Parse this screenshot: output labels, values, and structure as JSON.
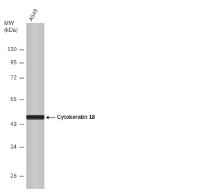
{
  "lane_label": "A549",
  "mw_label": {
    "line1": "MW",
    "line2": "(kDa)"
  },
  "markers": [
    "130",
    "95",
    "72",
    "55",
    "43",
    "34",
    "26"
  ],
  "band_label": "Cytokeratin 18"
}
